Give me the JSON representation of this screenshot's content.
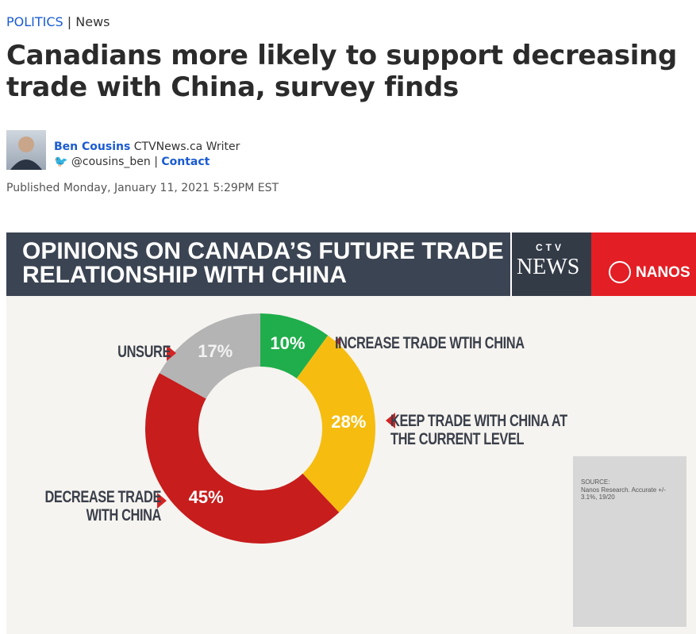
{
  "article": {
    "section": "POLITICS",
    "subsection": "News",
    "headline": "Canadians more likely to support decreasing trade with China, survey finds",
    "author": {
      "name": "Ben Cousins",
      "role": "CTVNews.ca Writer",
      "twitter": "@cousins_ben",
      "contact": "Contact"
    },
    "published": "Published Monday, January 11, 2021 5:29PM EST"
  },
  "logos": {
    "ctv": "CTV",
    "news": "NEWS",
    "nanos": "NANOS"
  },
  "source": {
    "label": "SOURCE:",
    "text": "Nanos Research. Accurate +/- 3.1%, 19/20"
  },
  "chart_data": {
    "type": "donut",
    "title": "OPINIONS ON CANADA’S FUTURE TRADE RELATIONSHIP WITH CHINA",
    "categories": [
      "INCREASE TRADE WTIH CHINA",
      "KEEP TRADE WITH CHINA AT THE CURRENT LEVEL",
      "DECREASE TRADE WITH CHINA",
      "UNSURE"
    ],
    "values": [
      10,
      28,
      45,
      17
    ],
    "value_labels": [
      "10%",
      "28%",
      "45%",
      "17%"
    ],
    "colors": [
      "#1fae4b",
      "#f6bd10",
      "#c71d1d",
      "#b4b4b4"
    ]
  }
}
